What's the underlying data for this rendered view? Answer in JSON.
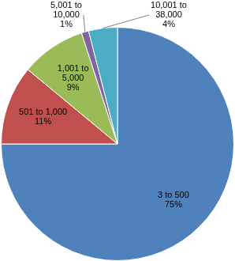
{
  "chart_data": {
    "type": "pie",
    "categories": [
      "3 to 500",
      "501 to 1,000",
      "1,001 to 5,000",
      "5,001 to 10,000",
      "10,001 to 38,000"
    ],
    "values": [
      75,
      11,
      9,
      1,
      4
    ],
    "value_labels": [
      "75%",
      "11%",
      "9%",
      "1%",
      "4%"
    ],
    "colors": [
      "#4f81bd",
      "#c0504d",
      "#9bbb59",
      "#8064a2",
      "#4bacc6"
    ],
    "data_labels": true
  }
}
